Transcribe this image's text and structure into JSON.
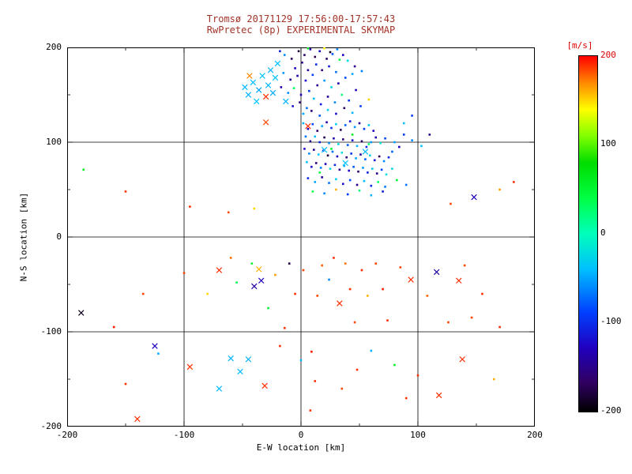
{
  "window": {
    "title1": "Tromsø 20171129 17:56:00-17:57:43",
    "title2": "RwPretec (8p) EXPERIMENTAL SKYMAP"
  },
  "colors": {
    "title": "#a23327",
    "accent": "#dd0000",
    "axis_text": "#000000",
    "background": "#ffffff"
  },
  "axes": {
    "xlabel": "E-W location [km]",
    "ylabel": "N-S location [km]",
    "x_ticks": [
      "-200",
      "-100",
      "0",
      "100",
      "200"
    ],
    "y_ticks": [
      "200",
      "100",
      "0",
      "-100",
      "-200"
    ]
  },
  "colorbar": {
    "label": "[m/s]",
    "ticks": [
      "200",
      "100",
      "0",
      "-100",
      "-200"
    ]
  },
  "chart_data": {
    "type": "scatter",
    "title": "Tromsø 20171129 17:56:00-17:57:43 / RwPretec (8p) EXPERIMENTAL SKYMAP",
    "xlabel": "E-W location [km]",
    "ylabel": "N-S location [km]",
    "xlim": [
      -200,
      200
    ],
    "ylim": [
      -200,
      200
    ],
    "grid": true,
    "gridlines_at": [
      -100,
      0,
      100
    ],
    "colorbar_label": "[m/s]",
    "colorbar_range": [
      -200,
      200
    ],
    "legend_position": "right",
    "marker_types": {
      "d": "dot",
      "x": "cross"
    },
    "colormap": [
      {
        "v": -200,
        "c": "#000000"
      },
      {
        "v": -168,
        "c": "#300060"
      },
      {
        "v": -128,
        "c": "#2000c0"
      },
      {
        "v": -88,
        "c": "#0040ff"
      },
      {
        "v": -40,
        "c": "#00bfff"
      },
      {
        "v": 0,
        "c": "#00ffbb"
      },
      {
        "v": 40,
        "c": "#00ff44"
      },
      {
        "v": 80,
        "c": "#00dd00"
      },
      {
        "v": 110,
        "c": "#80ff00"
      },
      {
        "v": 140,
        "c": "#ffff00"
      },
      {
        "v": 170,
        "c": "#ff8800"
      },
      {
        "v": 200,
        "c": "#ff0000"
      }
    ],
    "points": [
      [
        -2,
        196,
        -180,
        "d"
      ],
      [
        3,
        192,
        -160,
        "d"
      ],
      [
        8,
        198,
        -140,
        "d"
      ],
      [
        -8,
        188,
        -170,
        "d"
      ],
      [
        1,
        184,
        -150,
        "d"
      ],
      [
        12,
        190,
        -175,
        "d"
      ],
      [
        16,
        196,
        -120,
        "d"
      ],
      [
        20,
        199,
        140,
        "d"
      ],
      [
        -14,
        192,
        -60,
        "d"
      ],
      [
        -5,
        178,
        -130,
        "d"
      ],
      [
        6,
        176,
        -145,
        "d"
      ],
      [
        13,
        182,
        -100,
        "d"
      ],
      [
        22,
        188,
        -165,
        "d"
      ],
      [
        27,
        193,
        -80,
        "d"
      ],
      [
        33,
        187,
        40,
        "d"
      ],
      [
        6,
        199,
        60,
        "d"
      ],
      [
        25,
        195,
        -190,
        "d"
      ],
      [
        31,
        198,
        -60,
        "d"
      ],
      [
        -18,
        196,
        -110,
        "d"
      ],
      [
        36,
        192,
        -130,
        "d"
      ],
      [
        40,
        186,
        -20,
        "d"
      ],
      [
        46,
        180,
        -150,
        "d"
      ],
      [
        52,
        175,
        -65,
        "d"
      ],
      [
        -20,
        183,
        -40,
        "x"
      ],
      [
        -26,
        176,
        -45,
        "x"
      ],
      [
        -33,
        170,
        -35,
        "x"
      ],
      [
        -41,
        163,
        -40,
        "x"
      ],
      [
        -36,
        155,
        -50,
        "x"
      ],
      [
        -28,
        160,
        -42,
        "x"
      ],
      [
        -22,
        168,
        -38,
        "x"
      ],
      [
        -44,
        170,
        170,
        "x"
      ],
      [
        -48,
        158,
        -42,
        "x"
      ],
      [
        -45,
        150,
        -45,
        "x"
      ],
      [
        -38,
        143,
        -38,
        "x"
      ],
      [
        -24,
        152,
        -48,
        "x"
      ],
      [
        -13,
        143,
        -45,
        "x"
      ],
      [
        -15,
        173,
        -55,
        "d"
      ],
      [
        -9,
        166,
        -150,
        "d"
      ],
      [
        -3,
        170,
        -135,
        "d"
      ],
      [
        4,
        165,
        -120,
        "d"
      ],
      [
        10,
        171,
        -90,
        "d"
      ],
      [
        18,
        176,
        -160,
        "d"
      ],
      [
        24,
        180,
        -110,
        "d"
      ],
      [
        30,
        174,
        -70,
        "d"
      ],
      [
        -30,
        148,
        190,
        "x"
      ],
      [
        -17,
        158,
        -140,
        "d"
      ],
      [
        -11,
        152,
        -60,
        "d"
      ],
      [
        -6,
        157,
        30,
        "d"
      ],
      [
        0,
        150,
        -130,
        "d"
      ],
      [
        7,
        154,
        -95,
        "d"
      ],
      [
        14,
        160,
        -150,
        "d"
      ],
      [
        20,
        165,
        -55,
        "d"
      ],
      [
        26,
        158,
        -25,
        "d"
      ],
      [
        32,
        162,
        -140,
        "d"
      ],
      [
        38,
        168,
        -85,
        "d"
      ],
      [
        44,
        172,
        -50,
        "d"
      ],
      [
        -7,
        138,
        -120,
        "d"
      ],
      [
        -1,
        142,
        -160,
        "d"
      ],
      [
        5,
        136,
        -70,
        "d"
      ],
      [
        11,
        146,
        -35,
        "d"
      ],
      [
        17,
        140,
        -110,
        "d"
      ],
      [
        23,
        148,
        -145,
        "d"
      ],
      [
        29,
        142,
        -60,
        "d"
      ],
      [
        35,
        150,
        20,
        "d"
      ],
      [
        41,
        144,
        -95,
        "d"
      ],
      [
        47,
        155,
        -130,
        "d"
      ],
      [
        2,
        130,
        -50,
        "d"
      ],
      [
        9,
        133,
        -155,
        "d"
      ],
      [
        16,
        128,
        -80,
        "d"
      ],
      [
        23,
        134,
        -30,
        "d"
      ],
      [
        30,
        130,
        -120,
        "d"
      ],
      [
        37,
        136,
        -165,
        "d"
      ],
      [
        44,
        131,
        -45,
        "d"
      ],
      [
        51,
        138,
        -90,
        "d"
      ],
      [
        58,
        145,
        150,
        "d"
      ],
      [
        6,
        117,
        190,
        "x"
      ],
      [
        -30,
        121,
        185,
        "x"
      ],
      [
        2,
        120,
        -45,
        "d"
      ],
      [
        6,
        114,
        -130,
        "d"
      ],
      [
        10,
        119,
        -85,
        "d"
      ],
      [
        14,
        112,
        -160,
        "d"
      ],
      [
        18,
        117,
        -50,
        "d"
      ],
      [
        22,
        121,
        -140,
        "d"
      ],
      [
        26,
        115,
        -95,
        "d"
      ],
      [
        30,
        119,
        -30,
        "d"
      ],
      [
        34,
        113,
        -170,
        "d"
      ],
      [
        38,
        118,
        -75,
        "d"
      ],
      [
        42,
        122,
        -115,
        "d"
      ],
      [
        46,
        116,
        -55,
        "d"
      ],
      [
        50,
        120,
        -145,
        "d"
      ],
      [
        54,
        114,
        -90,
        "d"
      ],
      [
        58,
        118,
        -35,
        "d"
      ],
      [
        62,
        112,
        -125,
        "d"
      ],
      [
        4,
        106,
        -70,
        "d"
      ],
      [
        8,
        101,
        -150,
        "d"
      ],
      [
        12,
        106,
        -40,
        "d"
      ],
      [
        16,
        100,
        -110,
        "d"
      ],
      [
        20,
        105,
        -175,
        "d"
      ],
      [
        24,
        99,
        -60,
        "d"
      ],
      [
        28,
        104,
        -135,
        "d"
      ],
      [
        32,
        98,
        -25,
        "d"
      ],
      [
        36,
        103,
        -155,
        "d"
      ],
      [
        40,
        97,
        -80,
        "d"
      ],
      [
        44,
        102,
        -120,
        "d"
      ],
      [
        48,
        96,
        -45,
        "d"
      ],
      [
        52,
        101,
        -165,
        "d"
      ],
      [
        56,
        95,
        -100,
        "d"
      ],
      [
        60,
        100,
        -55,
        "d"
      ],
      [
        64,
        105,
        -140,
        "d"
      ],
      [
        68,
        99,
        -15,
        "d"
      ],
      [
        72,
        104,
        -85,
        "d"
      ],
      [
        44,
        108,
        60,
        "d"
      ],
      [
        88,
        108,
        -90,
        "d"
      ],
      [
        95,
        102,
        -60,
        "d"
      ],
      [
        103,
        96,
        -40,
        "d"
      ],
      [
        110,
        108,
        -150,
        "d"
      ],
      [
        88,
        120,
        -40,
        "d"
      ],
      [
        95,
        128,
        -90,
        "d"
      ],
      [
        3,
        93,
        -125,
        "d"
      ],
      [
        7,
        88,
        -60,
        "d"
      ],
      [
        11,
        92,
        -145,
        "d"
      ],
      [
        15,
        87,
        -35,
        "d"
      ],
      [
        19,
        91,
        -110,
        "d"
      ],
      [
        23,
        86,
        -180,
        "d"
      ],
      [
        27,
        90,
        -70,
        "d"
      ],
      [
        31,
        85,
        -130,
        "d"
      ],
      [
        35,
        89,
        -20,
        "d"
      ],
      [
        39,
        84,
        -160,
        "d"
      ],
      [
        43,
        88,
        -95,
        "d"
      ],
      [
        47,
        83,
        -50,
        "d"
      ],
      [
        51,
        87,
        -140,
        "d"
      ],
      [
        55,
        82,
        -75,
        "d"
      ],
      [
        59,
        86,
        -30,
        "d"
      ],
      [
        63,
        81,
        -115,
        "d"
      ],
      [
        67,
        85,
        -170,
        "d"
      ],
      [
        71,
        80,
        -60,
        "d"
      ],
      [
        75,
        84,
        -105,
        "d"
      ],
      [
        26,
        93,
        50,
        "d"
      ],
      [
        58,
        98,
        25,
        "d"
      ],
      [
        78,
        90,
        -75,
        "d"
      ],
      [
        80,
        100,
        -50,
        "d"
      ],
      [
        84,
        95,
        -130,
        "d"
      ],
      [
        20,
        92,
        -40,
        "x"
      ],
      [
        38,
        78,
        -38,
        "x"
      ],
      [
        55,
        90,
        -42,
        "x"
      ],
      [
        5,
        79,
        -40,
        "d"
      ],
      [
        9,
        74,
        -120,
        "d"
      ],
      [
        13,
        78,
        -155,
        "d"
      ],
      [
        17,
        73,
        -65,
        "d"
      ],
      [
        21,
        77,
        -135,
        "d"
      ],
      [
        25,
        72,
        -25,
        "d"
      ],
      [
        29,
        76,
        -100,
        "d"
      ],
      [
        33,
        71,
        -150,
        "d"
      ],
      [
        37,
        75,
        -45,
        "d"
      ],
      [
        41,
        70,
        -125,
        "d"
      ],
      [
        45,
        74,
        -80,
        "d"
      ],
      [
        49,
        69,
        -165,
        "d"
      ],
      [
        53,
        73,
        -55,
        "d"
      ],
      [
        57,
        68,
        -110,
        "d"
      ],
      [
        61,
        72,
        -35,
        "d"
      ],
      [
        65,
        67,
        -145,
        "d"
      ],
      [
        69,
        71,
        -90,
        "d"
      ],
      [
        73,
        66,
        -20,
        "d"
      ],
      [
        16,
        68,
        45,
        "d"
      ],
      [
        78,
        72,
        -25,
        "d"
      ],
      [
        6,
        62,
        -105,
        "d"
      ],
      [
        12,
        58,
        -50,
        "d"
      ],
      [
        18,
        63,
        -140,
        "d"
      ],
      [
        24,
        57,
        -70,
        "d"
      ],
      [
        30,
        61,
        -30,
        "d"
      ],
      [
        36,
        56,
        -120,
        "d"
      ],
      [
        42,
        60,
        -85,
        "d"
      ],
      [
        48,
        55,
        -155,
        "d"
      ],
      [
        54,
        59,
        -40,
        "d"
      ],
      [
        60,
        54,
        -100,
        "d"
      ],
      [
        66,
        58,
        30,
        "d"
      ],
      [
        72,
        53,
        -65,
        "d"
      ],
      [
        82,
        60,
        50,
        "d"
      ],
      [
        90,
        55,
        -70,
        "d"
      ],
      [
        10,
        48,
        40,
        "d"
      ],
      [
        20,
        46,
        -60,
        "d"
      ],
      [
        30,
        50,
        160,
        "d"
      ],
      [
        40,
        45,
        -90,
        "d"
      ],
      [
        50,
        49,
        20,
        "d"
      ],
      [
        60,
        44,
        -45,
        "d"
      ],
      [
        70,
        48,
        -110,
        "d"
      ],
      [
        -186,
        71,
        60,
        "d"
      ],
      [
        -150,
        48,
        190,
        "d"
      ],
      [
        -95,
        32,
        190,
        "d"
      ],
      [
        -62,
        26,
        185,
        "d"
      ],
      [
        182,
        58,
        190,
        "d"
      ],
      [
        170,
        50,
        165,
        "d"
      ],
      [
        148,
        42,
        -130,
        "x"
      ],
      [
        128,
        35,
        185,
        "d"
      ],
      [
        -40,
        30,
        150,
        "d"
      ],
      [
        -188,
        -80,
        -190,
        "x"
      ],
      [
        -160,
        -95,
        195,
        "d"
      ],
      [
        -140,
        -192,
        190,
        "x"
      ],
      [
        -125,
        -115,
        -130,
        "x"
      ],
      [
        -122,
        -123,
        -45,
        "d"
      ],
      [
        -100,
        -38,
        185,
        "d"
      ],
      [
        -95,
        -137,
        190,
        "x"
      ],
      [
        -80,
        -60,
        150,
        "d"
      ],
      [
        -70,
        -35,
        190,
        "x"
      ],
      [
        -60,
        -22,
        175,
        "d"
      ],
      [
        -55,
        -48,
        35,
        "d"
      ],
      [
        -45,
        -129,
        -45,
        "x"
      ],
      [
        -40,
        -52,
        -140,
        "x"
      ],
      [
        -34,
        -46,
        -130,
        "x"
      ],
      [
        -31,
        -157,
        190,
        "x"
      ],
      [
        -28,
        -75,
        45,
        "d"
      ],
      [
        -22,
        -40,
        165,
        "d"
      ],
      [
        -14,
        -96,
        190,
        "d"
      ],
      [
        -10,
        -28,
        -180,
        "d"
      ],
      [
        -5,
        -60,
        190,
        "d"
      ],
      [
        0,
        -130,
        -40,
        "d"
      ],
      [
        2,
        -35,
        185,
        "d"
      ],
      [
        8,
        -183,
        190,
        "d"
      ],
      [
        9,
        -121,
        195,
        "d"
      ],
      [
        14,
        -62,
        185,
        "d"
      ],
      [
        18,
        -30,
        180,
        "d"
      ],
      [
        24,
        -45,
        -60,
        "d"
      ],
      [
        28,
        -22,
        190,
        "d"
      ],
      [
        33,
        -70,
        190,
        "x"
      ],
      [
        38,
        -28,
        175,
        "d"
      ],
      [
        42,
        -55,
        190,
        "d"
      ],
      [
        46,
        -90,
        185,
        "d"
      ],
      [
        52,
        -35,
        190,
        "d"
      ],
      [
        57,
        -62,
        160,
        "d"
      ],
      [
        60,
        -120,
        -45,
        "d"
      ],
      [
        64,
        -28,
        185,
        "d"
      ],
      [
        70,
        -55,
        195,
        "d"
      ],
      [
        74,
        -88,
        190,
        "d"
      ],
      [
        80,
        -135,
        55,
        "d"
      ],
      [
        85,
        -32,
        185,
        "d"
      ],
      [
        94,
        -45,
        190,
        "x"
      ],
      [
        100,
        -146,
        190,
        "d"
      ],
      [
        108,
        -62,
        180,
        "d"
      ],
      [
        116,
        -37,
        -140,
        "x"
      ],
      [
        118,
        -167,
        190,
        "x"
      ],
      [
        126,
        -90,
        185,
        "d"
      ],
      [
        135,
        -46,
        190,
        "x"
      ],
      [
        138,
        -129,
        190,
        "x"
      ],
      [
        146,
        -85,
        185,
        "d"
      ],
      [
        155,
        -60,
        190,
        "d"
      ],
      [
        165,
        -150,
        160,
        "d"
      ],
      [
        170,
        -95,
        190,
        "d"
      ],
      [
        -150,
        -155,
        190,
        "d"
      ],
      [
        -135,
        -60,
        185,
        "d"
      ],
      [
        -70,
        -160,
        -40,
        "x"
      ],
      [
        -52,
        -142,
        -42,
        "x"
      ],
      [
        12,
        -152,
        190,
        "d"
      ],
      [
        35,
        -160,
        185,
        "d"
      ],
      [
        90,
        -170,
        190,
        "d"
      ],
      [
        -18,
        -115,
        190,
        "d"
      ],
      [
        48,
        -140,
        190,
        "d"
      ],
      [
        140,
        -30,
        185,
        "d"
      ],
      [
        -42,
        -28,
        55,
        "d"
      ],
      [
        -36,
        -34,
        160,
        "x"
      ],
      [
        -60,
        -128,
        -45,
        "x"
      ]
    ]
  }
}
